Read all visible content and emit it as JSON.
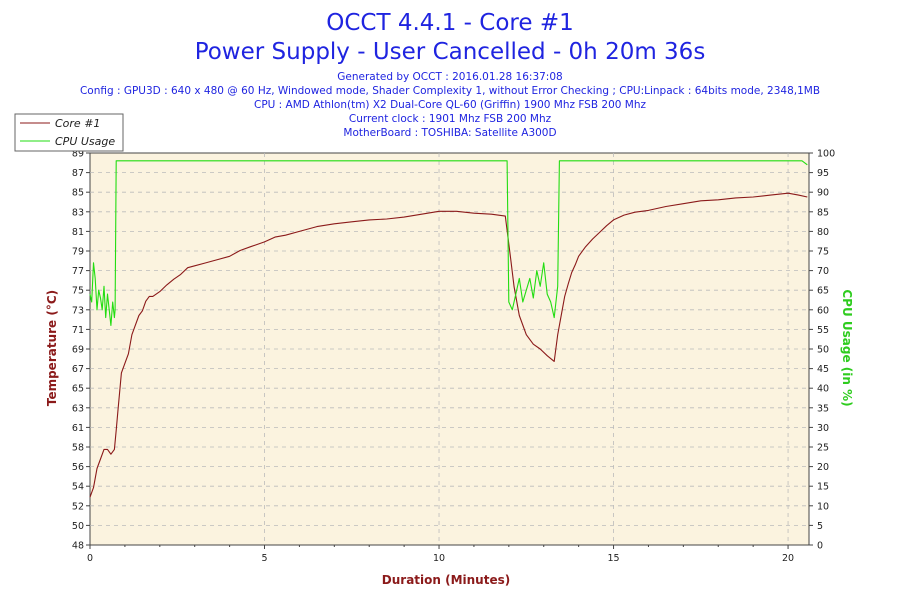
{
  "chart_data": {
    "type": "line",
    "title": "OCCT 4.4.1 - Core #1",
    "subtitle": "Power Supply - User Cancelled - 0h 20m 36s",
    "info_lines": [
      "Generated by OCCT : 2016.01.28 16:37:08",
      "Config : GPU3D : 640 x 480 @ 60 Hz, Windowed mode, Shader Complexity 1, without Error Checking ; CPU:Linpack : 64bits mode, 2348,1MB",
      "CPU : AMD Athlon(tm) X2 Dual-Core QL-60 (Griffin) 1900 Mhz FSB 200 Mhz",
      "Current clock : 1901 Mhz FSB 200 Mhz",
      "MotherBoard : TOSHIBA: Satellite A300D"
    ],
    "xlabel": "Duration (Minutes)",
    "ylabel_left": "Temperature (°C)",
    "ylabel_right": "CPU Usage (in %)",
    "xlim": [
      0,
      20.6
    ],
    "ylim_left": [
      48,
      89
    ],
    "ylim_right": [
      0,
      100
    ],
    "x_ticks": [
      "0",
      "5",
      "10",
      "15",
      "20"
    ],
    "y_ticks_left": [
      "48",
      "50",
      "52",
      "54",
      "56",
      "58",
      "61",
      "63",
      "65",
      "67",
      "69",
      "71",
      "73",
      "75",
      "77",
      "79",
      "81",
      "83",
      "85",
      "87",
      "89"
    ],
    "y_ticks_right": [
      "0",
      "5",
      "10",
      "15",
      "20",
      "25",
      "30",
      "35",
      "40",
      "45",
      "50",
      "55",
      "60",
      "65",
      "70",
      "75",
      "80",
      "85",
      "90",
      "95",
      "100"
    ],
    "grid": true,
    "legend_position": "top-left",
    "series": [
      {
        "name": "Core #1",
        "axis": "left",
        "color": "#8b1a1a",
        "x": [
          0,
          0.1,
          0.2,
          0.3,
          0.4,
          0.5,
          0.6,
          0.7,
          0.75,
          0.8,
          0.9,
          1.0,
          1.1,
          1.2,
          1.3,
          1.4,
          1.5,
          1.6,
          1.7,
          1.8,
          2.0,
          2.2,
          2.4,
          2.6,
          2.8,
          3.0,
          3.3,
          3.6,
          4.0,
          4.3,
          4.6,
          5.0,
          5.3,
          5.6,
          6.0,
          6.5,
          7.0,
          7.5,
          8.0,
          8.5,
          9.0,
          9.5,
          10.0,
          10.5,
          11.0,
          11.5,
          11.9,
          12.05,
          12.15,
          12.3,
          12.5,
          12.7,
          12.9,
          13.1,
          13.3,
          13.4,
          13.5,
          13.6,
          13.7,
          13.8,
          13.9,
          14.0,
          14.2,
          14.4,
          14.6,
          14.8,
          15.0,
          15.3,
          15.6,
          16.0,
          16.5,
          17.0,
          17.5,
          18.0,
          18.5,
          19.0,
          19.5,
          20.0,
          20.3,
          20.55
        ],
        "values": [
          53,
          54,
          56,
          57,
          58,
          58,
          57.5,
          58,
          60,
          62,
          66,
          67,
          68,
          70,
          71,
          72,
          72.5,
          73.5,
          74,
          74,
          74.5,
          75.2,
          75.8,
          76.3,
          77,
          77.2,
          77.5,
          77.8,
          78.2,
          78.8,
          79.2,
          79.7,
          80.2,
          80.4,
          80.8,
          81.3,
          81.6,
          81.8,
          82.0,
          82.1,
          82.3,
          82.6,
          82.9,
          82.9,
          82.7,
          82.6,
          82.4,
          78,
          75,
          72,
          70,
          69,
          68.5,
          67.8,
          67.2,
          70,
          72,
          74,
          75.3,
          76.5,
          77.3,
          78.2,
          79.2,
          80,
          80.7,
          81.4,
          82.0,
          82.5,
          82.8,
          83.0,
          83.4,
          83.7,
          84.0,
          84.1,
          84.3,
          84.4,
          84.6,
          84.8,
          84.6,
          84.4
        ]
      },
      {
        "name": "CPU Usage",
        "axis": "right",
        "color": "#22dd11",
        "x": [
          0,
          0.05,
          0.1,
          0.15,
          0.2,
          0.25,
          0.3,
          0.35,
          0.4,
          0.45,
          0.5,
          0.55,
          0.6,
          0.65,
          0.7,
          0.72,
          0.75,
          1.0,
          2.0,
          3.0,
          4.0,
          5.0,
          6.0,
          7.0,
          8.0,
          9.0,
          10.0,
          11.0,
          11.8,
          11.95,
          12.0,
          12.1,
          12.2,
          12.3,
          12.4,
          12.5,
          12.6,
          12.7,
          12.8,
          12.9,
          13.0,
          13.1,
          13.2,
          13.3,
          13.4,
          13.45,
          13.5,
          14.0,
          15.0,
          16.0,
          17.0,
          18.0,
          19.0,
          20.0,
          20.4,
          20.55
        ],
        "values": [
          64,
          62,
          72,
          68,
          60,
          65,
          63,
          60,
          66,
          58,
          64,
          60,
          56,
          62,
          58,
          60,
          98,
          98,
          98,
          98,
          98,
          98,
          98,
          98,
          98,
          98,
          98,
          98,
          98,
          98,
          62,
          60,
          64,
          68,
          62,
          65,
          68,
          63,
          70,
          66,
          72,
          64,
          62,
          58,
          66,
          98,
          98,
          98,
          98,
          98,
          98,
          98,
          98,
          98,
          98,
          97
        ]
      }
    ]
  }
}
